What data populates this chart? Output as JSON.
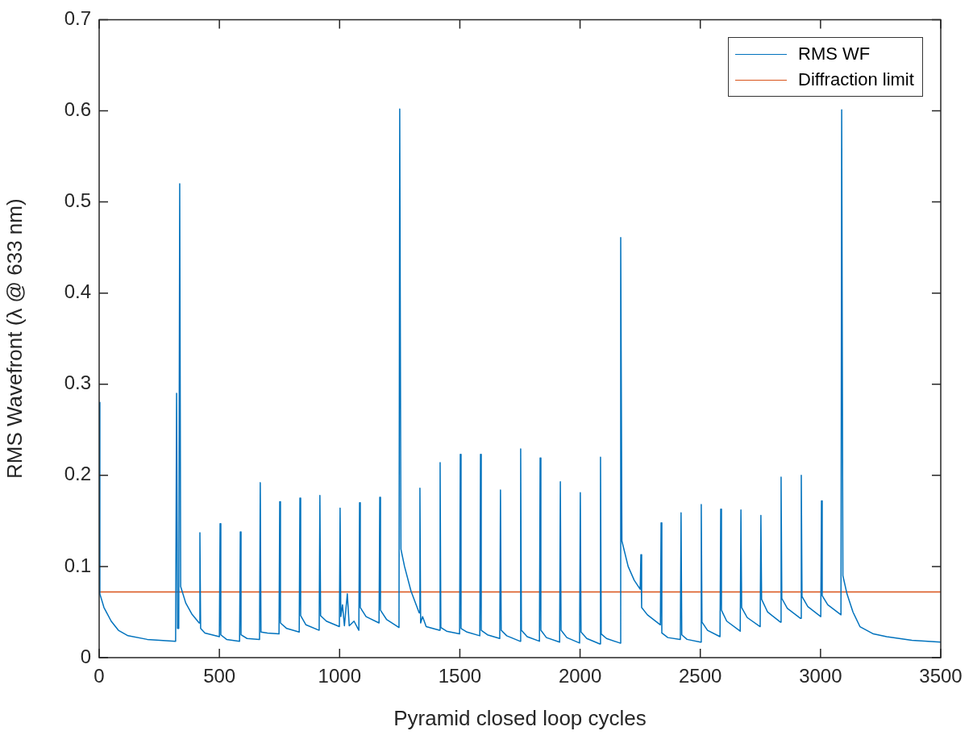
{
  "chart_data": {
    "type": "line",
    "xlabel": "Pyramid closed loop cycles",
    "ylabel": "RMS Wavefront (λ @ 633 nm)",
    "xlim": [
      0,
      3500
    ],
    "xticks": [
      0,
      500,
      1000,
      1500,
      2000,
      2500,
      3000,
      3500
    ],
    "ylim": [
      0,
      0.7
    ],
    "yticks": [
      0,
      0.1,
      0.2,
      0.3,
      0.4,
      0.5,
      0.6,
      0.7
    ],
    "legend": "top right",
    "marker": "none",
    "line_style": "solid",
    "series": [
      {
        "name": "RMS WF",
        "color": "#0072bd",
        "x": [
          0,
          3,
          20,
          50,
          80,
          120,
          200,
          318,
          322,
          326,
          331,
          335,
          339,
          360,
          385,
          416,
          419,
          422,
          440,
          500,
          503,
          506,
          530,
          584,
          587,
          590,
          615,
          667,
          670,
          673,
          700,
          748,
          751,
          754,
          780,
          832,
          835,
          838,
          860,
          915,
          918,
          921,
          945,
          999,
          1002,
          1005,
          1012,
          1020,
          1032,
          1040,
          1060,
          1080,
          1083,
          1086,
          1110,
          1164,
          1167,
          1170,
          1195,
          1247,
          1250,
          1255,
          1270,
          1297,
          1331,
          1334,
          1337,
          1345,
          1360,
          1415,
          1418,
          1421,
          1445,
          1499,
          1502,
          1505,
          1530,
          1583,
          1586,
          1589,
          1615,
          1666,
          1669,
          1672,
          1695,
          1750,
          1753,
          1756,
          1780,
          1831,
          1834,
          1837,
          1860,
          1915,
          1918,
          1921,
          1945,
          1998,
          2001,
          2004,
          2028,
          2082,
          2085,
          2088,
          2110,
          2166,
          2169,
          2174,
          2200,
          2225,
          2250,
          2253,
          2256,
          2280,
          2334,
          2337,
          2340,
          2365,
          2417,
          2420,
          2423,
          2445,
          2501,
          2504,
          2507,
          2530,
          2582,
          2585,
          2588,
          2610,
          2666,
          2669,
          2672,
          2695,
          2749,
          2752,
          2755,
          2780,
          2833,
          2836,
          2839,
          2862,
          2917,
          2920,
          2923,
          2947,
          3001,
          3004,
          3007,
          3030,
          3085,
          3088,
          3093,
          3110,
          3135,
          3164,
          3220,
          3275,
          3380,
          3500
        ],
        "values": [
          0.28,
          0.07,
          0.055,
          0.04,
          0.03,
          0.024,
          0.02,
          0.018,
          0.29,
          0.032,
          0.032,
          0.52,
          0.078,
          0.06,
          0.048,
          0.038,
          0.137,
          0.032,
          0.027,
          0.023,
          0.147,
          0.025,
          0.02,
          0.018,
          0.138,
          0.025,
          0.021,
          0.02,
          0.192,
          0.028,
          0.027,
          0.026,
          0.171,
          0.038,
          0.032,
          0.028,
          0.175,
          0.046,
          0.036,
          0.03,
          0.178,
          0.046,
          0.04,
          0.034,
          0.164,
          0.045,
          0.058,
          0.035,
          0.07,
          0.035,
          0.04,
          0.03,
          0.17,
          0.055,
          0.045,
          0.038,
          0.176,
          0.052,
          0.042,
          0.033,
          0.602,
          0.119,
          0.1,
          0.073,
          0.049,
          0.186,
          0.038,
          0.045,
          0.034,
          0.03,
          0.214,
          0.033,
          0.029,
          0.026,
          0.223,
          0.032,
          0.028,
          0.024,
          0.223,
          0.03,
          0.025,
          0.021,
          0.184,
          0.03,
          0.024,
          0.018,
          0.229,
          0.03,
          0.023,
          0.018,
          0.219,
          0.03,
          0.022,
          0.017,
          0.193,
          0.03,
          0.022,
          0.016,
          0.181,
          0.028,
          0.021,
          0.015,
          0.22,
          0.026,
          0.021,
          0.016,
          0.461,
          0.128,
          0.1,
          0.085,
          0.075,
          0.113,
          0.055,
          0.047,
          0.036,
          0.148,
          0.027,
          0.022,
          0.02,
          0.159,
          0.025,
          0.02,
          0.017,
          0.168,
          0.039,
          0.03,
          0.023,
          0.163,
          0.052,
          0.04,
          0.029,
          0.162,
          0.055,
          0.044,
          0.034,
          0.156,
          0.064,
          0.05,
          0.039,
          0.198,
          0.065,
          0.054,
          0.043,
          0.2,
          0.067,
          0.056,
          0.045,
          0.172,
          0.068,
          0.058,
          0.047,
          0.601,
          0.09,
          0.07,
          0.05,
          0.034,
          0.026,
          0.023,
          0.019,
          0.017
        ]
      },
      {
        "name": "Diffraction limit",
        "color": "#d95319",
        "x": [
          0,
          3500
        ],
        "values": [
          0.072,
          0.072
        ]
      }
    ]
  }
}
